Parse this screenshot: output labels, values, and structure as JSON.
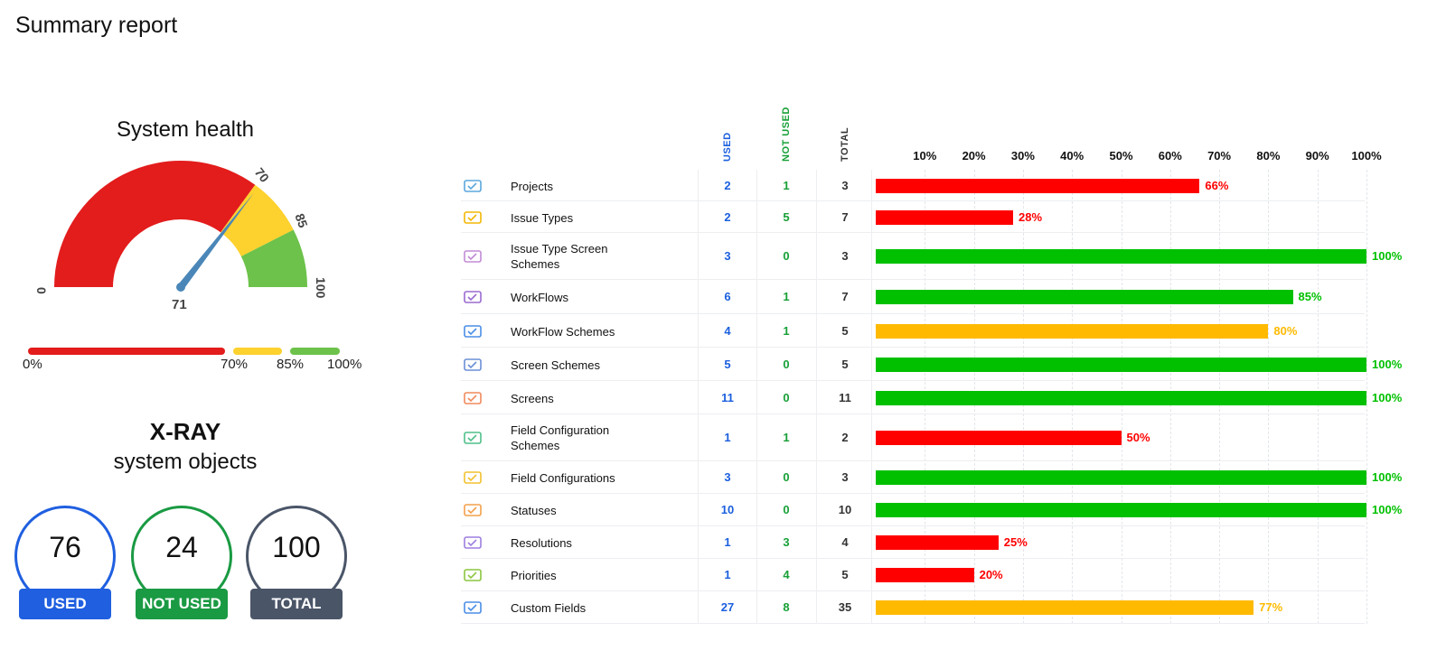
{
  "page": {
    "title": "Summary report"
  },
  "health": {
    "title": "System health",
    "value": 71,
    "labels": {
      "min": "0",
      "t70": "70",
      "t85": "85",
      "max": "100",
      "value": "71"
    },
    "legend": {
      "p0": "0%",
      "p70": "70%",
      "p85": "85%",
      "p100": "100%"
    },
    "colors": {
      "red": "#e31c1c",
      "yellow": "#fdd12e",
      "green": "#6cc24a",
      "needle": "#4a87b8"
    }
  },
  "xray": {
    "title": "X-RAY",
    "subtitle": "system objects",
    "used": {
      "value": "76",
      "label": "USED",
      "color": "#1f5fe0"
    },
    "not_used": {
      "value": "24",
      "label": "NOT USED",
      "color": "#1a9a43"
    },
    "total": {
      "value": "100",
      "label": "TOTAL",
      "color": "#4a5568"
    }
  },
  "table": {
    "headers": {
      "used": "USED",
      "not_used": "NOT USED",
      "total": "TOTAL"
    },
    "ticks": [
      "10%",
      "20%",
      "30%",
      "40%",
      "50%",
      "60%",
      "70%",
      "80%",
      "90%",
      "100%"
    ],
    "colors": {
      "red": "#ff0000",
      "green": "#00c000",
      "orange": "#ffba00"
    },
    "rows": [
      {
        "name": "Projects",
        "icon": "projects-icon",
        "icon_color": "#5aa7dd",
        "used": "2",
        "not_used": "1",
        "total": "3",
        "percent": 66,
        "percent_label": "66%",
        "status": "red"
      },
      {
        "name": "Issue Types",
        "icon": "issue-types-icon",
        "icon_color": "#f2b705",
        "used": "2",
        "not_used": "5",
        "total": "7",
        "percent": 28,
        "percent_label": "28%",
        "status": "red"
      },
      {
        "name": "Issue Type Screen Schemes",
        "icon": "issue-type-screen-schemes-icon",
        "icon_color": "#c28bd6",
        "used": "3",
        "not_used": "0",
        "total": "3",
        "percent": 100,
        "percent_label": "100%",
        "status": "green"
      },
      {
        "name": "WorkFlows",
        "icon": "workflows-icon",
        "icon_color": "#9b6bd1",
        "used": "6",
        "not_used": "1",
        "total": "7",
        "percent": 85,
        "percent_label": "85%",
        "status": "green"
      },
      {
        "name": "WorkFlow Schemes",
        "icon": "workflow-schemes-icon",
        "icon_color": "#4a8ee6",
        "used": "4",
        "not_used": "1",
        "total": "5",
        "percent": 80,
        "percent_label": "80%",
        "status": "orange"
      },
      {
        "name": "Screen Schemes",
        "icon": "screen-schemes-icon",
        "icon_color": "#6b8fd6",
        "used": "5",
        "not_used": "0",
        "total": "5",
        "percent": 100,
        "percent_label": "100%",
        "status": "green"
      },
      {
        "name": "Screens",
        "icon": "screens-icon",
        "icon_color": "#f08a5d",
        "used": "11",
        "not_used": "0",
        "total": "11",
        "percent": 100,
        "percent_label": "100%",
        "status": "green"
      },
      {
        "name": "Field Configuration Schemes",
        "icon": "field-configuration-schemes-icon",
        "icon_color": "#4fbf8a",
        "used": "1",
        "not_used": "1",
        "total": "2",
        "percent": 50,
        "percent_label": "50%",
        "status": "red"
      },
      {
        "name": "Field Configurations",
        "icon": "field-configurations-icon",
        "icon_color": "#f2c12e",
        "used": "3",
        "not_used": "0",
        "total": "3",
        "percent": 100,
        "percent_label": "100%",
        "status": "green"
      },
      {
        "name": "Statuses",
        "icon": "statuses-icon",
        "icon_color": "#f4a04a",
        "used": "10",
        "not_used": "0",
        "total": "10",
        "percent": 100,
        "percent_label": "100%",
        "status": "green"
      },
      {
        "name": "Resolutions",
        "icon": "resolutions-icon",
        "icon_color": "#9d7fe0",
        "used": "1",
        "not_used": "3",
        "total": "4",
        "percent": 25,
        "percent_label": "25%",
        "status": "red"
      },
      {
        "name": "Priorities",
        "icon": "priorities-icon",
        "icon_color": "#8cc63f",
        "used": "1",
        "not_used": "4",
        "total": "5",
        "percent": 20,
        "percent_label": "20%",
        "status": "red"
      },
      {
        "name": "Custom Fields",
        "icon": "custom-fields-icon",
        "icon_color": "#4a8ee6",
        "used": "27",
        "not_used": "8",
        "total": "35",
        "percent": 77,
        "percent_label": "77%",
        "status": "orange"
      }
    ]
  }
}
